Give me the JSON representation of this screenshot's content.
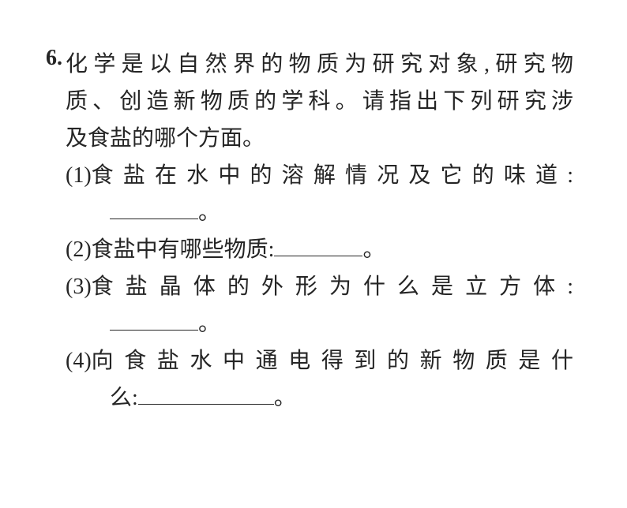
{
  "document": {
    "background_color": "#ffffff",
    "text_color": "#252525",
    "font_family": "SimSun",
    "base_fontsize": 28,
    "line_height": 1.68
  },
  "question": {
    "number": "6.",
    "intro_line1": "化学是以自然界的物质为研究对象,研究物",
    "intro_line2": "质、创造新物质的学科。请指出下列研究涉",
    "intro_line3": "及食盐的哪个方面。",
    "items": [
      {
        "number": "(1)",
        "text": "食盐在水中的溶解情况及它的味道:",
        "blank_width": 112,
        "blank_after_period": true,
        "justify": true,
        "has_second_line_blank": true
      },
      {
        "number": "(2)",
        "text_before": "食盐中有哪些物质:",
        "blank_width": 112,
        "blank_inline": true,
        "justify": false
      },
      {
        "number": "(3)",
        "text": "食盐晶体的外形为什么是立方体:",
        "blank_width": 112,
        "blank_after_period": true,
        "justify": true,
        "has_second_line_blank": true
      },
      {
        "number": "(4)",
        "text_line1": "向食盐水中通电得到的新物质是什",
        "text_line2": "么:",
        "blank_width": 172,
        "justify": true,
        "multiline": true
      }
    ],
    "period": "。"
  }
}
